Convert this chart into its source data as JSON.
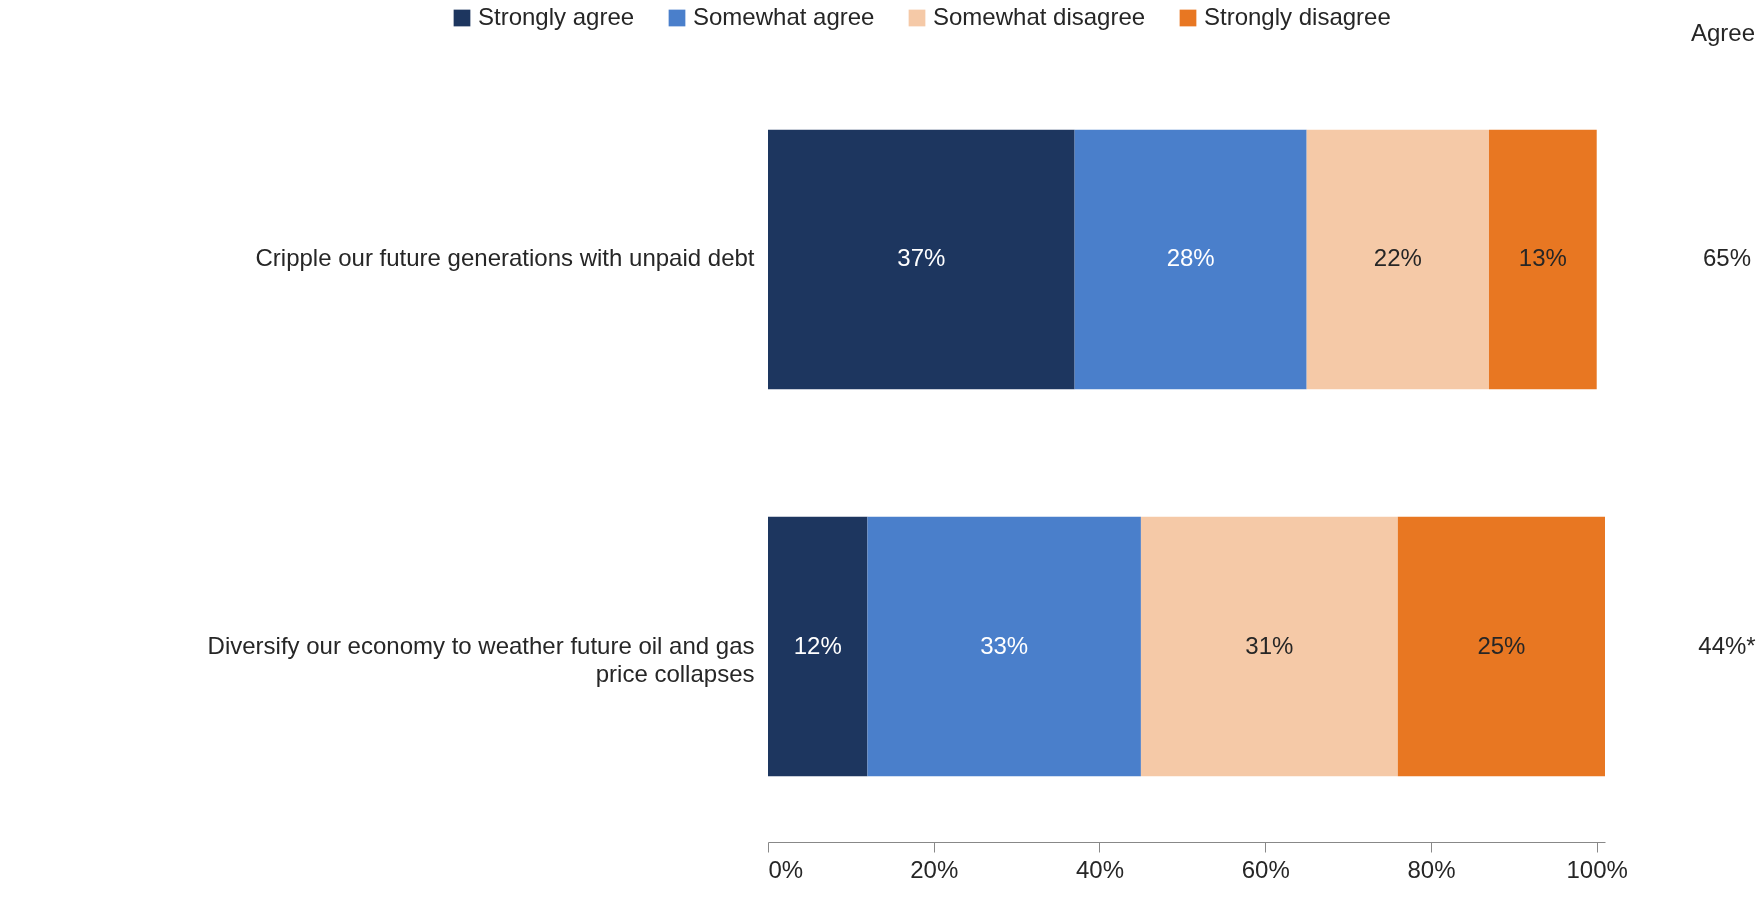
{
  "chart_data": {
    "type": "bar",
    "orientation": "horizontal",
    "stacked": true,
    "categories": [
      "Cripple our future generations with unpaid debt",
      "Diversify our economy to weather future oil and gas price collapses"
    ],
    "series": [
      {
        "name": "Strongly agree",
        "color": "#1d365f",
        "values": [
          37,
          12
        ],
        "value_labels": [
          "37%",
          "12%"
        ]
      },
      {
        "name": "Somewhat agree",
        "color": "#4a7fcb",
        "values": [
          28,
          33
        ],
        "value_labels": [
          "28%",
          "33%"
        ]
      },
      {
        "name": "Somewhat disagree",
        "color": "#f5c9a7",
        "values": [
          22,
          31
        ],
        "value_labels": [
          "22%",
          "31%"
        ]
      },
      {
        "name": "Strongly disagree",
        "color": "#e87722",
        "values": [
          13,
          25
        ],
        "value_labels": [
          "13%",
          "25%"
        ]
      }
    ],
    "xlim": [
      0,
      101
    ],
    "xticks": [
      {
        "value": 0,
        "label": "0%"
      },
      {
        "value": 20,
        "label": "20%"
      },
      {
        "value": 40,
        "label": "40%"
      },
      {
        "value": 60,
        "label": "60%"
      },
      {
        "value": 80,
        "label": "80%"
      },
      {
        "value": 100,
        "label": "100%"
      }
    ],
    "legend": "top",
    "grid": false,
    "annotations": [
      "Agree",
      "65%",
      "44%*"
    ]
  }
}
